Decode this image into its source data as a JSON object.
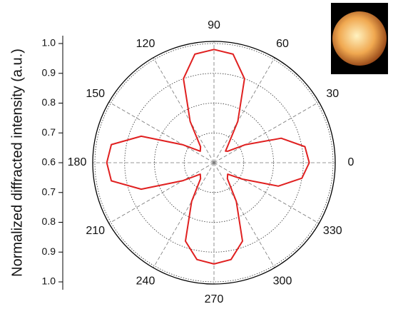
{
  "chart_data": {
    "type": "polar",
    "ylabel": "Normalized diffracted intensity (a.u.)",
    "theta": [
      0,
      10,
      20,
      30,
      40,
      45,
      50,
      60,
      70,
      80,
      90,
      100,
      110,
      120,
      130,
      140,
      150,
      160,
      170,
      180,
      190,
      200,
      210,
      220,
      230,
      240,
      250,
      260,
      270,
      280,
      290,
      300,
      310,
      320,
      330,
      340,
      350
    ],
    "values": [
      0.92,
      0.91,
      0.84,
      0.72,
      0.66,
      0.655,
      0.67,
      0.76,
      0.9,
      0.97,
      0.98,
      0.97,
      0.9,
      0.76,
      0.67,
      0.66,
      0.72,
      0.86,
      0.95,
      0.96,
      0.95,
      0.86,
      0.72,
      0.66,
      0.67,
      0.75,
      0.88,
      0.93,
      0.94,
      0.93,
      0.88,
      0.75,
      0.67,
      0.66,
      0.71,
      0.83,
      0.9
    ],
    "color": "#e02020",
    "rlim": [
      0.6,
      1.0
    ],
    "rticks": [
      0.6,
      0.7,
      0.8,
      0.9,
      {
        "value": 1.0,
        "label": "1.0"
      }
    ],
    "thetaticks": [
      0,
      30,
      60,
      90,
      120,
      150,
      180,
      210,
      240,
      270,
      300,
      330
    ],
    "grid": true
  }
}
